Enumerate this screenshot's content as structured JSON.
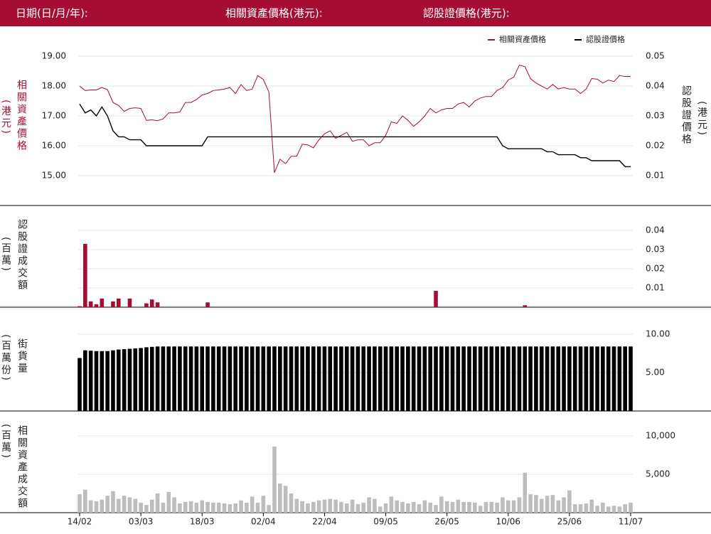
{
  "header": {
    "date_label": "日期(日/月/年):",
    "asset_label": "相關資產價格(港元):",
    "warrant_label": "認股證價格(港元):"
  },
  "chart_data": [
    {
      "type": "line",
      "legend": "top-right",
      "y_label": "相關資產價格",
      "y_unit": "(港元)",
      "y2_label": "認股證價格",
      "y2_unit": "(港元)",
      "ylim": [
        15,
        19
      ],
      "yticks": [
        {
          "value": 15,
          "label": "15.00"
        },
        {
          "value": 16,
          "label": "16.00"
        },
        {
          "value": 17,
          "label": "17.00"
        },
        {
          "value": 18,
          "label": "18.00"
        },
        {
          "value": 19,
          "label": "19.00"
        }
      ],
      "y2lim": [
        0.01,
        0.05
      ],
      "y2ticks": [
        0.01,
        0.02,
        0.03,
        0.04,
        0.05
      ],
      "grid": true,
      "series": [
        {
          "name": "相關資產價格",
          "color": "#a50e32",
          "values": [
            18.0,
            17.85,
            17.87,
            17.87,
            17.95,
            17.88,
            17.45,
            17.35,
            17.15,
            17.25,
            17.27,
            17.25,
            16.85,
            16.87,
            16.84,
            16.9,
            17.1,
            17.1,
            17.13,
            17.45,
            17.45,
            17.55,
            17.7,
            17.75,
            17.85,
            17.87,
            17.9,
            17.95,
            17.75,
            18.05,
            17.85,
            17.9,
            18.35,
            18.22,
            17.8,
            15.1,
            15.55,
            15.4,
            15.65,
            15.65,
            16.05,
            16.03,
            15.93,
            16.2,
            16.4,
            16.5,
            16.25,
            16.35,
            16.45,
            16.15,
            16.2,
            16.2,
            16.0,
            16.1,
            16.1,
            16.35,
            16.8,
            16.75,
            17.0,
            16.85,
            16.65,
            16.8,
            17.0,
            17.25,
            17.1,
            17.2,
            17.25,
            17.25,
            17.4,
            17.45,
            17.3,
            17.5,
            17.6,
            17.65,
            17.65,
            17.85,
            17.95,
            18.2,
            18.3,
            18.7,
            18.65,
            18.25,
            18.1,
            18.0,
            17.9,
            18.05,
            17.9,
            17.95,
            17.9,
            17.9,
            17.75,
            17.9,
            18.25,
            18.23,
            18.1,
            18.2,
            18.15,
            18.35,
            18.32,
            18.32
          ]
        },
        {
          "name": "認股證價格",
          "color": "#000000",
          "axis": "y2",
          "values": [
            0.034,
            0.031,
            0.032,
            0.03,
            0.033,
            0.03,
            0.025,
            0.023,
            0.023,
            0.022,
            0.022,
            0.022,
            0.02,
            0.02,
            0.02,
            0.02,
            0.02,
            0.02,
            0.02,
            0.02,
            0.02,
            0.02,
            0.02,
            0.023,
            0.023,
            0.023,
            0.023,
            0.023,
            0.023,
            0.023,
            0.023,
            0.023,
            0.023,
            0.023,
            0.023,
            0.023,
            0.023,
            0.023,
            0.023,
            0.023,
            0.023,
            0.023,
            0.023,
            0.023,
            0.023,
            0.023,
            0.023,
            0.023,
            0.023,
            0.023,
            0.023,
            0.023,
            0.023,
            0.023,
            0.023,
            0.023,
            0.023,
            0.023,
            0.023,
            0.023,
            0.023,
            0.023,
            0.023,
            0.023,
            0.023,
            0.023,
            0.023,
            0.023,
            0.023,
            0.023,
            0.023,
            0.023,
            0.023,
            0.023,
            0.023,
            0.023,
            0.02,
            0.019,
            0.019,
            0.019,
            0.019,
            0.019,
            0.019,
            0.019,
            0.018,
            0.018,
            0.017,
            0.017,
            0.017,
            0.017,
            0.016,
            0.016,
            0.015,
            0.015,
            0.015,
            0.015,
            0.015,
            0.015,
            0.013,
            0.013
          ]
        }
      ]
    },
    {
      "type": "bar",
      "y_label": "認股證成交額",
      "y_unit": "(百萬)",
      "yaxis_position": "right",
      "color": "#a50e32",
      "ylim": [
        0,
        0.04
      ],
      "yticks": [
        0.01,
        0.02,
        0.03,
        0.04
      ],
      "grid": true,
      "values": [
        0.0005,
        0.033,
        0.003,
        0.0015,
        0.0045,
        0,
        0.003,
        0.0045,
        0,
        0.0045,
        0,
        0,
        0.002,
        0.004,
        0.0025,
        0,
        0,
        0,
        0,
        0,
        0,
        0,
        0,
        0.0025,
        0,
        0,
        0,
        0,
        0,
        0,
        0,
        0,
        0,
        0,
        0,
        0,
        0,
        0,
        0,
        0,
        0,
        0,
        0,
        0,
        0,
        0,
        0,
        0,
        0,
        0,
        0,
        0,
        0,
        0,
        0,
        0,
        0,
        0,
        0,
        0,
        0,
        0,
        0,
        0,
        0.0085,
        0,
        0,
        0,
        0,
        0,
        0,
        0,
        0,
        0,
        0,
        0,
        0,
        0,
        0,
        0,
        0.001,
        0,
        0,
        0,
        0,
        0,
        0,
        0,
        0,
        0,
        0,
        0,
        0,
        0,
        0,
        0,
        0,
        0,
        0,
        0
      ]
    },
    {
      "type": "bar",
      "y_label": "街貨量",
      "y_unit": "(百萬份)",
      "yaxis_position": "right",
      "color": "#000000",
      "ylim": [
        0,
        10
      ],
      "yticks": [
        {
          "value": 5,
          "label": "5.00"
        },
        {
          "value": 10,
          "label": "10.00"
        }
      ],
      "grid": true,
      "values": [
        6.9,
        7.9,
        7.85,
        7.8,
        7.8,
        7.8,
        7.9,
        8.0,
        8.05,
        8.1,
        8.15,
        8.2,
        8.3,
        8.35,
        8.4,
        8.4,
        8.4,
        8.4,
        8.4,
        8.4,
        8.4,
        8.4,
        8.4,
        8.4,
        8.4,
        8.4,
        8.4,
        8.4,
        8.4,
        8.4,
        8.4,
        8.4,
        8.4,
        8.4,
        8.4,
        8.4,
        8.4,
        8.4,
        8.4,
        8.4,
        8.4,
        8.4,
        8.4,
        8.4,
        8.4,
        8.4,
        8.4,
        8.4,
        8.4,
        8.4,
        8.4,
        8.4,
        8.4,
        8.4,
        8.4,
        8.4,
        8.4,
        8.4,
        8.4,
        8.4,
        8.4,
        8.4,
        8.4,
        8.4,
        8.4,
        8.4,
        8.4,
        8.4,
        8.4,
        8.4,
        8.4,
        8.4,
        8.4,
        8.4,
        8.4,
        8.4,
        8.4,
        8.4,
        8.4,
        8.4,
        8.4,
        8.4,
        8.4,
        8.4,
        8.4,
        8.4,
        8.4,
        8.4,
        8.4,
        8.4,
        8.4,
        8.4,
        8.4,
        8.4,
        8.4,
        8.4,
        8.4,
        8.4,
        8.4,
        8.4
      ]
    },
    {
      "type": "bar",
      "y_label": "相關資產成交額",
      "y_unit": "(百萬)",
      "yaxis_position": "right",
      "color": "#bdbdbd",
      "ylim": [
        0,
        10000
      ],
      "yticks": [
        {
          "value": 5000,
          "label": "5,000"
        },
        {
          "value": 10000,
          "label": "10,000"
        }
      ],
      "grid": true,
      "categories": [
        "14/02",
        null,
        null,
        null,
        null,
        null,
        null,
        null,
        null,
        null,
        null,
        "03/03",
        null,
        null,
        null,
        null,
        null,
        null,
        null,
        null,
        null,
        null,
        "18/03",
        null,
        null,
        null,
        null,
        null,
        null,
        null,
        null,
        null,
        null,
        "02/04",
        null,
        null,
        null,
        null,
        null,
        null,
        null,
        null,
        null,
        null,
        "22/04",
        null,
        null,
        null,
        null,
        null,
        null,
        null,
        null,
        null,
        null,
        "09/05",
        null,
        null,
        null,
        null,
        null,
        null,
        null,
        null,
        null,
        null,
        "26/05",
        null,
        null,
        null,
        null,
        null,
        null,
        null,
        null,
        null,
        null,
        "10/06",
        null,
        null,
        null,
        null,
        null,
        null,
        null,
        null,
        null,
        null,
        "25/06",
        null,
        null,
        null,
        null,
        null,
        null,
        null,
        null,
        null,
        null,
        "11/07"
      ],
      "values": [
        2400,
        3000,
        1600,
        1500,
        1700,
        2200,
        2800,
        1800,
        2200,
        2000,
        1800,
        1300,
        1000,
        1700,
        2500,
        1300,
        2700,
        2000,
        1200,
        1400,
        1500,
        1300,
        1600,
        1400,
        1300,
        1300,
        1200,
        1100,
        1200,
        1600,
        1300,
        2100,
        1300,
        2200,
        1000,
        8600,
        3800,
        3500,
        2500,
        1800,
        1500,
        1200,
        1400,
        1600,
        1700,
        1800,
        1700,
        1400,
        1200,
        1700,
        1100,
        1300,
        2000,
        1800,
        800,
        1200,
        2100,
        1600,
        1400,
        1200,
        1400,
        1100,
        1600,
        1300,
        1000,
        2100,
        1500,
        1400,
        1700,
        1400,
        1400,
        1300,
        900,
        1400,
        1400,
        1300,
        2000,
        1600,
        1600,
        2000,
        5200,
        2400,
        2300,
        1800,
        2200,
        2300,
        1600,
        2000,
        2900,
        1100,
        1100,
        1200,
        1700,
        900,
        1300,
        800,
        900,
        800,
        1100,
        1300
      ]
    }
  ]
}
